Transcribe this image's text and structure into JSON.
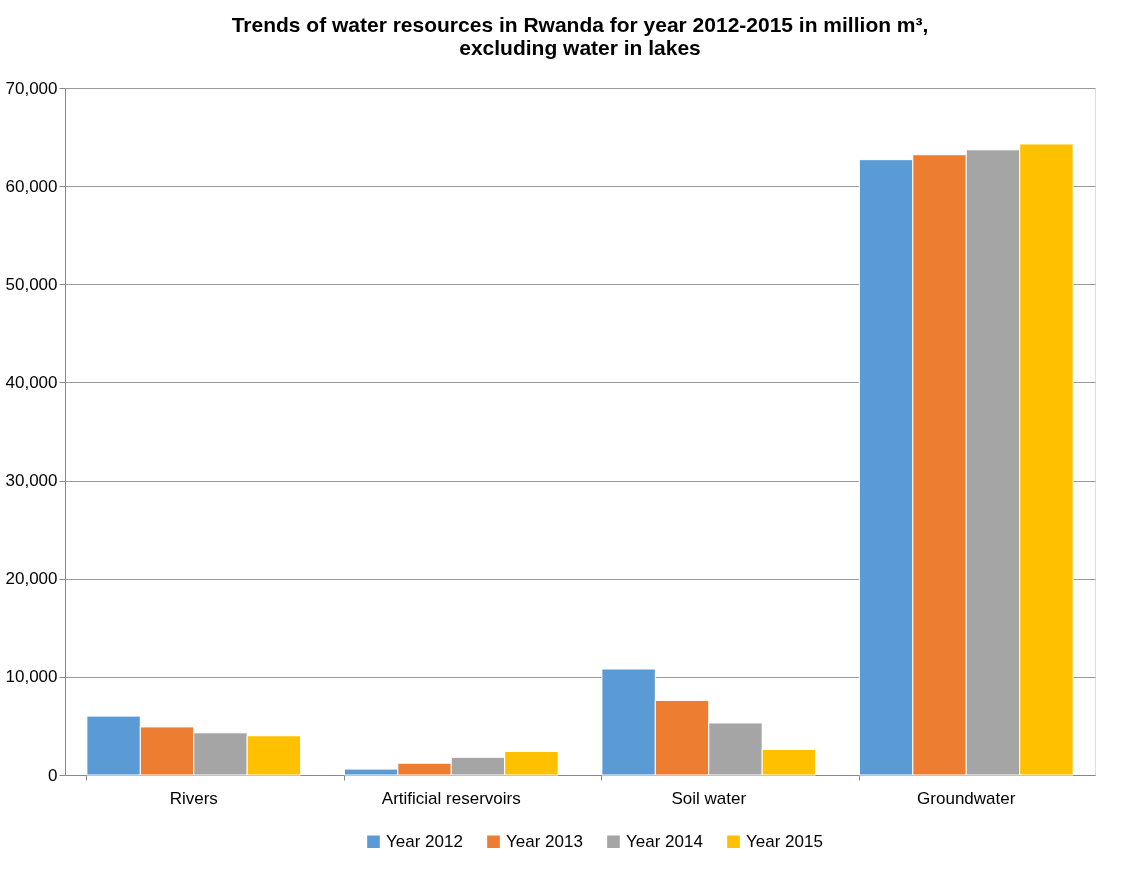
{
  "chart_data": {
    "type": "bar",
    "title": [
      "Trends of water resources in Rwanda for year 2012-2015 in million m³,",
      "excluding water in lakes"
    ],
    "categories": [
      "Rivers",
      "Artificial reservoirs",
      "Soil water",
      "Groundwater"
    ],
    "series": [
      {
        "name": "Year 2012",
        "color": "#5b9bd5",
        "values": [
          6000,
          600,
          10800,
          62700
        ]
      },
      {
        "name": "Year 2013",
        "color": "#ed7d31",
        "values": [
          4900,
          1200,
          7600,
          63200
        ]
      },
      {
        "name": "Year 2014",
        "color": "#a5a5a5",
        "values": [
          4300,
          1800,
          5300,
          63700
        ]
      },
      {
        "name": "Year 2015",
        "color": "#ffc000",
        "values": [
          4000,
          2400,
          2600,
          64300
        ]
      }
    ],
    "ylim": [
      0,
      70000
    ],
    "yticks": [
      0,
      {
        "value": 10000,
        "label": "10,000"
      },
      {
        "value": 20000,
        "label": "20,000"
      },
      {
        "value": 30000,
        "label": "30,000"
      },
      {
        "value": 40000,
        "label": "40,000"
      },
      {
        "value": 50000,
        "label": "50,000"
      },
      {
        "value": 60000,
        "label": "60,000"
      },
      {
        "value": 70000,
        "label": "70,000"
      }
    ],
    "grid": "y",
    "legend": "bottom"
  }
}
